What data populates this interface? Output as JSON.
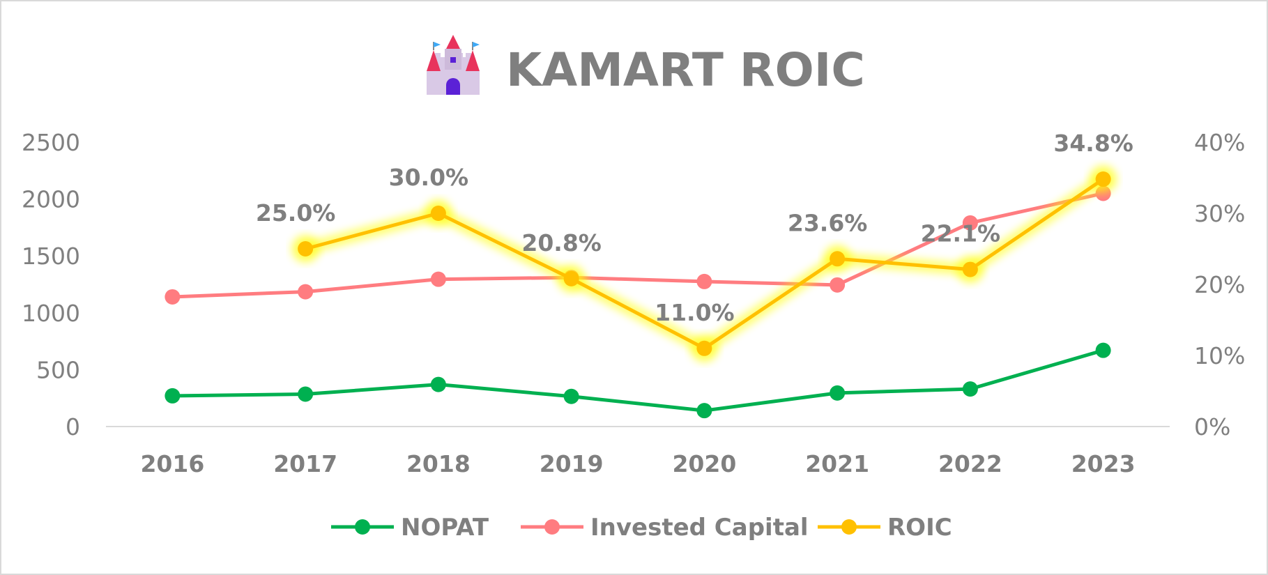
{
  "title": "KAMART ROIC",
  "title_icon": "castle-icon",
  "chart_data": {
    "type": "line",
    "categories": [
      "2016",
      "2017",
      "2018",
      "2019",
      "2020",
      "2021",
      "2022",
      "2023"
    ],
    "y_left": {
      "ylim": [
        0,
        2500
      ],
      "ticks": [
        "0",
        "500",
        "1000",
        "1500",
        "2000",
        "2500"
      ]
    },
    "y_right": {
      "ylim": [
        0,
        0.4
      ],
      "ticks": [
        "0%",
        "10%",
        "20%",
        "30%",
        "40%"
      ]
    },
    "grid": false,
    "legend_position": "bottom",
    "series": [
      {
        "name": "NOPAT",
        "axis": "left",
        "color": "#00b050",
        "values": [
          270,
          285,
          370,
          265,
          140,
          295,
          330,
          670
        ]
      },
      {
        "name": "Invested Capital",
        "axis": "left",
        "color": "#ff7c80",
        "values": [
          1140,
          1185,
          1295,
          1310,
          1275,
          1245,
          1790,
          2050
        ]
      },
      {
        "name": "ROIC",
        "axis": "right",
        "color": "#ffc000",
        "glow": true,
        "values": [
          null,
          0.25,
          0.3,
          0.208,
          0.11,
          0.236,
          0.221,
          0.348
        ],
        "labels": [
          null,
          "25.0%",
          "30.0%",
          "20.8%",
          "11.0%",
          "23.6%",
          "22.1%",
          "34.8%"
        ]
      }
    ]
  }
}
